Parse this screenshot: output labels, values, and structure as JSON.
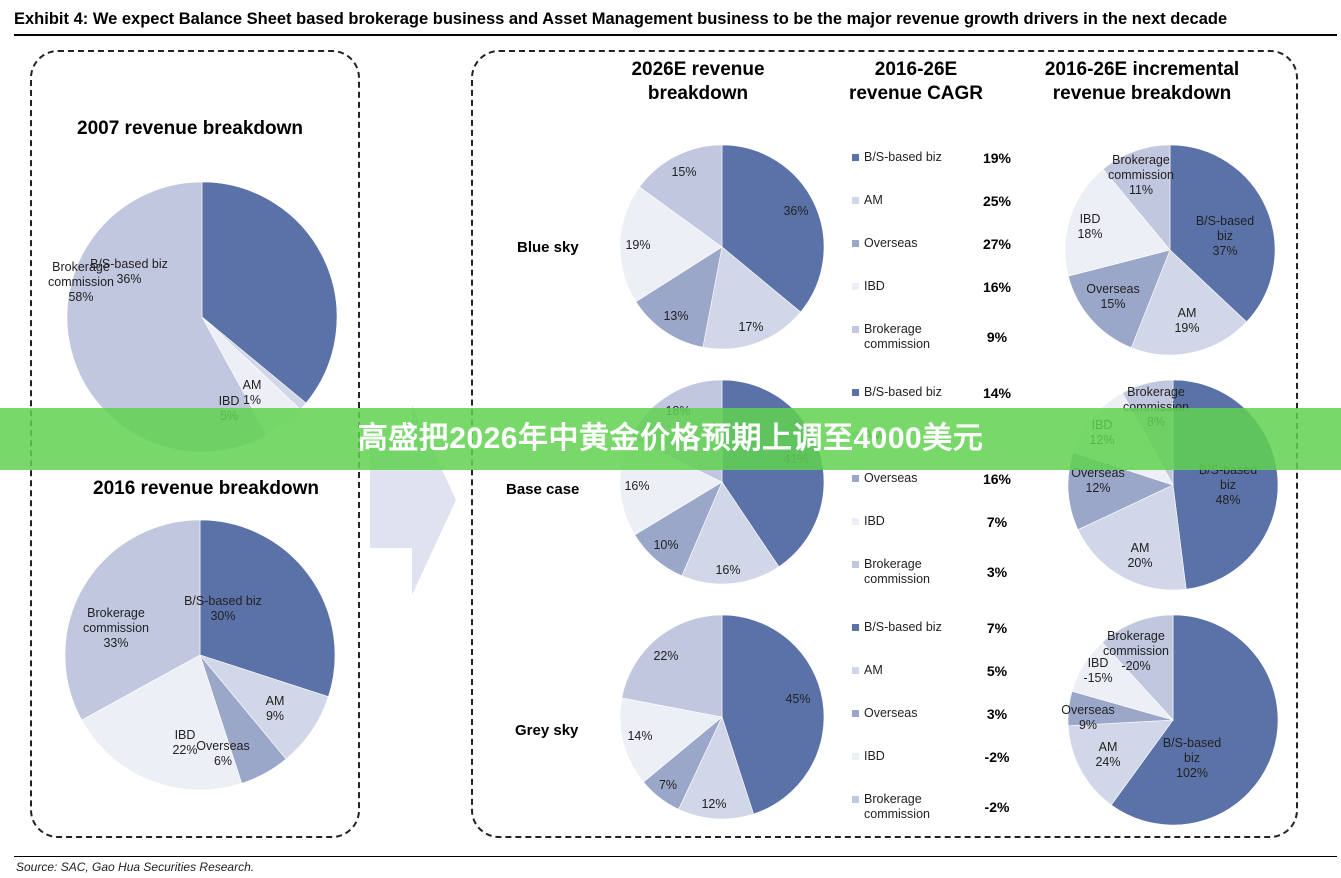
{
  "title": "Exhibit 4: We expect Balance Sheet based brokerage business and Asset Management business to be the major revenue growth drivers in the next decade",
  "source": "Source: SAC, Gao Hua Securities Research.",
  "banner": "高盛把2026年中黄金价格预期上调至4000美元",
  "colors": {
    "bs": "#5b72a8",
    "am": "#d1d6e8",
    "overseas": "#9aa7c9",
    "ibd": "#edeff7",
    "brokerage": "#c0c7df"
  },
  "headers": {
    "breakdown_2026": "2026E revenue\nbreakdown",
    "cagr": "2016-26E\nrevenue CAGR",
    "incremental": "2016-26E incremental\nrevenue breakdown"
  },
  "scenarios": [
    "Blue sky",
    "Base case",
    "Grey sky"
  ],
  "chart_data": [
    {
      "type": "pie",
      "title": "2007 revenue breakdown",
      "slices": [
        {
          "label": "B/S-based biz\n36%",
          "value": 36,
          "color": "bs"
        },
        {
          "label": "AM\n1%",
          "value": 1,
          "color": "am"
        },
        {
          "label": "IBD\n5%",
          "value": 5,
          "color": "ibd"
        },
        {
          "label": "Brokerage\ncommission\n58%",
          "value": 58,
          "color": "brokerage"
        }
      ]
    },
    {
      "type": "pie",
      "title": "2016 revenue breakdown",
      "slices": [
        {
          "label": "B/S-based biz\n30%",
          "value": 30,
          "color": "bs"
        },
        {
          "label": "AM\n9%",
          "value": 9,
          "color": "am"
        },
        {
          "label": "Overseas\n6%",
          "value": 6,
          "color": "overseas"
        },
        {
          "label": "IBD\n22%",
          "value": 22,
          "color": "ibd"
        },
        {
          "label": "Brokerage\ncommission\n33%",
          "value": 33,
          "color": "brokerage"
        }
      ]
    },
    {
      "type": "pie",
      "title": "",
      "scenario": "Blue sky",
      "slices": [
        {
          "label": "36%",
          "value": 36,
          "color": "bs"
        },
        {
          "label": "17%",
          "value": 17,
          "color": "am"
        },
        {
          "label": "13%",
          "value": 13,
          "color": "overseas"
        },
        {
          "label": "19%",
          "value": 19,
          "color": "ibd"
        },
        {
          "label": "15%",
          "value": 15,
          "color": "brokerage"
        }
      ]
    },
    {
      "type": "pie",
      "title": "",
      "scenario": "Base case",
      "slices": [
        {
          "label": "41%",
          "value": 41,
          "color": "bs"
        },
        {
          "label": "16%",
          "value": 16,
          "color": "am"
        },
        {
          "label": "10%",
          "value": 10,
          "color": "overseas"
        },
        {
          "label": "16%",
          "value": 16,
          "color": "ibd"
        },
        {
          "label": "18%",
          "value": 18,
          "color": "brokerage"
        }
      ]
    },
    {
      "type": "pie",
      "title": "",
      "scenario": "Grey sky",
      "slices": [
        {
          "label": "45%",
          "value": 45,
          "color": "bs"
        },
        {
          "label": "12%",
          "value": 12,
          "color": "am"
        },
        {
          "label": "7%",
          "value": 7,
          "color": "overseas"
        },
        {
          "label": "14%",
          "value": 14,
          "color": "ibd"
        },
        {
          "label": "22%",
          "value": 22,
          "color": "brokerage"
        }
      ]
    },
    {
      "type": "table",
      "title": "",
      "scenario": "Blue sky",
      "rows": [
        {
          "name": "B/S-based biz",
          "value": "19%",
          "color": "bs"
        },
        {
          "name": "AM",
          "value": "25%",
          "color": "am"
        },
        {
          "name": "Overseas",
          "value": "27%",
          "color": "overseas"
        },
        {
          "name": "IBD",
          "value": "16%",
          "color": "ibd"
        },
        {
          "name": "Brokerage\ncommission",
          "value": "9%",
          "color": "brokerage"
        }
      ]
    },
    {
      "type": "table",
      "title": "",
      "scenario": "Base case",
      "rows": [
        {
          "name": "B/S-based biz",
          "value": "14%",
          "color": "bs"
        },
        {
          "name": "AM",
          "value": "",
          "color": "am"
        },
        {
          "name": "Overseas",
          "value": "16%",
          "color": "overseas"
        },
        {
          "name": "IBD",
          "value": "7%",
          "color": "ibd"
        },
        {
          "name": "Brokerage\ncommission",
          "value": "3%",
          "color": "brokerage"
        }
      ]
    },
    {
      "type": "table",
      "title": "",
      "scenario": "Grey sky",
      "rows": [
        {
          "name": "B/S-based biz",
          "value": "7%",
          "color": "bs"
        },
        {
          "name": "AM",
          "value": "5%",
          "color": "am"
        },
        {
          "name": "Overseas",
          "value": "3%",
          "color": "overseas"
        },
        {
          "name": "IBD",
          "value": "-2%",
          "color": "ibd"
        },
        {
          "name": "Brokerage\ncommission",
          "value": "-2%",
          "color": "brokerage"
        }
      ]
    },
    {
      "type": "pie",
      "title": "",
      "scenario": "Blue sky",
      "slices": [
        {
          "label": "B/S-based\nbiz\n37%",
          "value": 37,
          "color": "bs"
        },
        {
          "label": "AM\n19%",
          "value": 19,
          "color": "am"
        },
        {
          "label": "Overseas\n15%",
          "value": 15,
          "color": "overseas"
        },
        {
          "label": "IBD\n18%",
          "value": 18,
          "color": "ibd"
        },
        {
          "label": "Brokerage\ncommission\n11%",
          "value": 11,
          "color": "brokerage"
        }
      ]
    },
    {
      "type": "pie",
      "title": "",
      "scenario": "Base case",
      "slices": [
        {
          "label": "B/S-based\nbiz\n48%",
          "value": 48,
          "color": "bs"
        },
        {
          "label": "AM\n20%",
          "value": 20,
          "color": "am"
        },
        {
          "label": "Overseas\n12%",
          "value": 12,
          "color": "overseas"
        },
        {
          "label": "IBD\n12%",
          "value": 12,
          "color": "ibd"
        },
        {
          "label": "Brokerage\ncommission\n8%",
          "value": 8,
          "color": "brokerage"
        }
      ]
    },
    {
      "type": "pie",
      "title": "",
      "scenario": "Grey sky",
      "slices": [
        {
          "label": "B/S-based\nbiz\n102%",
          "value": 102,
          "color": "bs"
        },
        {
          "label": "AM\n24%",
          "value": 24,
          "color": "am"
        },
        {
          "label": "Overseas\n9%",
          "value": 9,
          "color": "overseas"
        },
        {
          "label": "IBD\n-15%",
          "value": -15,
          "color": "ibd"
        },
        {
          "label": "Brokerage\ncommission\n-20%",
          "value": -20,
          "color": "brokerage"
        }
      ]
    }
  ]
}
